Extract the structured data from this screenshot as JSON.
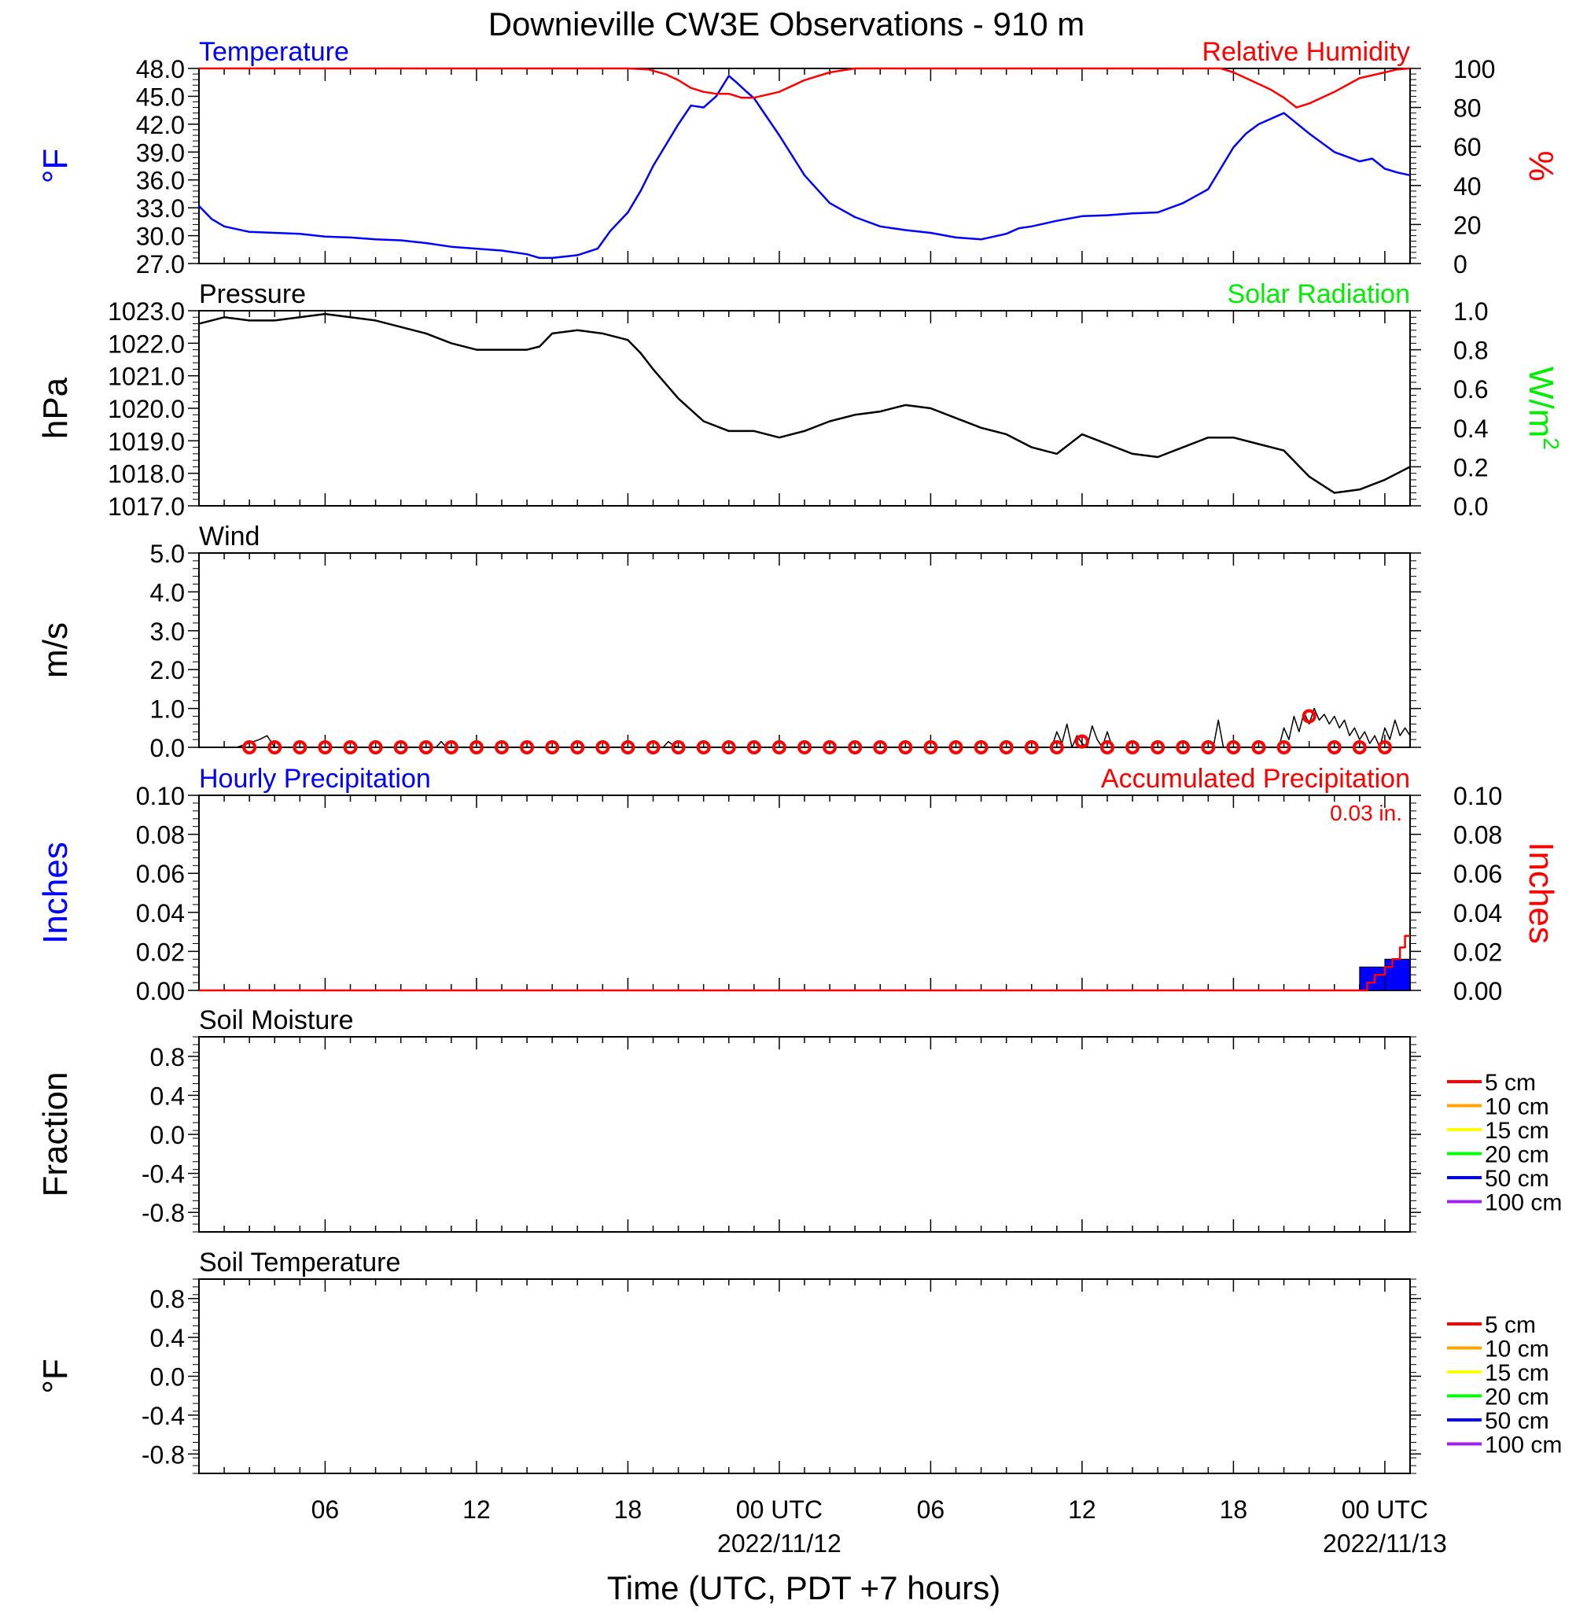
{
  "figure": {
    "title": "Downieville CW3E Observations - 910 m",
    "xlabel": "Time (UTC, PDT +7 hours)",
    "x_ticks": [
      {
        "hour": 6,
        "label": "06",
        "date": ""
      },
      {
        "hour": 12,
        "label": "12",
        "date": ""
      },
      {
        "hour": 18,
        "label": "18",
        "date": ""
      },
      {
        "hour": 24,
        "label": "00 UTC",
        "date": "2022/11/12"
      },
      {
        "hour": 30,
        "label": "06",
        "date": ""
      },
      {
        "hour": 36,
        "label": "12",
        "date": ""
      },
      {
        "hour": 42,
        "label": "18",
        "date": ""
      },
      {
        "hour": 48,
        "label": "00 UTC",
        "date": "2022/11/13"
      }
    ],
    "colors": {
      "temperature": "#0000ff",
      "humidity": "#ff0000",
      "pressure": "#000000",
      "solar": "#00ee00",
      "wind": "#000000",
      "wind_marker": "#ff0000",
      "hourly_precip": "#0000ff",
      "accum_precip": "#ff0000"
    }
  },
  "chart_data": [
    {
      "type": "line",
      "panel": "temperature-humidity",
      "title_left": "Temperature",
      "title_right": "Relative Humidity",
      "ylabel_left": "°F",
      "ylabel_right": "%",
      "x_range_hours": [
        1,
        49
      ],
      "ylim_left": [
        27,
        48
      ],
      "yticks_left": [
        "48.0",
        "45.0",
        "42.0",
        "39.0",
        "36.0",
        "33.0",
        "30.0",
        "27.0"
      ],
      "ylim_right": [
        0,
        100
      ],
      "yticks_right": [
        "100",
        "80",
        "60",
        "40",
        "20",
        "0"
      ],
      "series": [
        {
          "name": "Temperature",
          "axis": "left",
          "x": [
            1,
            1.5,
            2,
            3,
            4,
            5,
            6,
            7,
            8,
            9,
            10,
            11,
            12,
            13,
            14,
            14.5,
            15,
            16,
            16.8,
            17.3,
            18,
            18.5,
            19,
            20,
            20.5,
            21,
            21.5,
            22,
            22.3,
            22.7,
            23,
            24,
            25,
            26,
            27,
            28,
            29,
            30,
            31,
            32,
            33,
            33.5,
            34,
            35,
            36,
            37,
            38,
            39,
            40,
            41,
            42,
            42.5,
            43,
            44,
            45,
            46,
            47,
            47.5,
            48,
            48.5,
            49
          ],
          "y": [
            33.2,
            31.8,
            31.0,
            30.4,
            30.3,
            30.2,
            29.9,
            29.8,
            29.6,
            29.5,
            29.2,
            28.8,
            28.6,
            28.4,
            28.0,
            27.6,
            27.6,
            27.9,
            28.6,
            30.5,
            32.5,
            34.8,
            37.5,
            42.0,
            44.0,
            43.8,
            45.0,
            47.2,
            46.5,
            45.5,
            44.8,
            40.8,
            36.5,
            33.5,
            32.0,
            31.0,
            30.6,
            30.3,
            29.8,
            29.6,
            30.2,
            30.8,
            31.0,
            31.6,
            32.1,
            32.2,
            32.4,
            32.5,
            33.5,
            35.0,
            39.5,
            41.0,
            42.0,
            43.2,
            41.0,
            39.0,
            38.0,
            38.3,
            37.2,
            36.8,
            36.5
          ]
        },
        {
          "name": "Relative Humidity",
          "axis": "right",
          "x": [
            1,
            18,
            18.8,
            19.5,
            20,
            20.5,
            21,
            21.5,
            22,
            22.5,
            23,
            24,
            25,
            26,
            27,
            28,
            29,
            30,
            32,
            34,
            36,
            40,
            41.5,
            42,
            42.5,
            43,
            43.5,
            44,
            44.5,
            45,
            46,
            47,
            48,
            48.5,
            49
          ],
          "y": [
            100,
            100,
            99.5,
            97,
            94,
            90,
            88,
            87,
            87,
            85,
            85,
            88,
            94,
            98,
            100,
            100,
            100,
            100,
            100,
            100,
            100,
            100,
            100,
            98,
            95,
            92,
            89,
            85,
            80,
            82,
            88,
            95,
            98,
            99.5,
            100
          ]
        }
      ]
    },
    {
      "type": "line",
      "panel": "pressure-solar",
      "title_left": "Pressure",
      "title_right": "Solar Radiation",
      "ylabel_left": "hPa",
      "ylabel_right": "W/m",
      "ylabel_right_sup": "2",
      "x_range_hours": [
        1,
        49
      ],
      "ylim_left": [
        1017,
        1023
      ],
      "yticks_left": [
        "1023.0",
        "1022.0",
        "1021.0",
        "1020.0",
        "1019.0",
        "1018.0",
        "1017.0"
      ],
      "ylim_right": [
        0,
        1
      ],
      "yticks_right": [
        "1.0",
        "0.8",
        "0.6",
        "0.4",
        "0.2",
        "0.0"
      ],
      "series": [
        {
          "name": "Pressure",
          "axis": "left",
          "x": [
            1,
            2,
            3,
            4,
            5,
            6,
            7,
            8,
            9,
            10,
            11,
            12,
            13,
            14,
            14.5,
            15,
            16,
            17,
            18,
            18.5,
            19,
            20,
            21,
            22,
            23,
            24,
            25,
            26,
            27,
            28,
            29,
            30,
            31,
            32,
            33,
            34,
            35,
            35.5,
            36,
            37,
            38,
            39,
            40,
            41,
            42,
            43,
            44,
            44.5,
            45,
            46,
            47,
            48,
            49
          ],
          "y": [
            1022.6,
            1022.8,
            1022.7,
            1022.7,
            1022.8,
            1022.9,
            1022.8,
            1022.7,
            1022.5,
            1022.3,
            1022.0,
            1021.8,
            1021.8,
            1021.8,
            1021.9,
            1022.3,
            1022.4,
            1022.3,
            1022.1,
            1021.7,
            1021.2,
            1020.3,
            1019.6,
            1019.3,
            1019.3,
            1019.1,
            1019.3,
            1019.6,
            1019.8,
            1019.9,
            1020.1,
            1020.0,
            1019.7,
            1019.4,
            1019.2,
            1018.8,
            1018.6,
            1018.9,
            1019.2,
            1018.9,
            1018.6,
            1018.5,
            1018.8,
            1019.1,
            1019.1,
            1018.9,
            1018.7,
            1018.3,
            1017.9,
            1017.4,
            1017.5,
            1017.8,
            1018.2
          ]
        },
        {
          "name": "Solar Radiation",
          "axis": "right",
          "x": [],
          "y": []
        }
      ]
    },
    {
      "type": "line",
      "panel": "wind",
      "title_left": "Wind",
      "ylabel_left": "m/s",
      "x_range_hours": [
        1,
        49
      ],
      "ylim_left": [
        0,
        5
      ],
      "yticks_left": [
        "5.0",
        "4.0",
        "3.0",
        "2.0",
        "1.0",
        "0.0"
      ],
      "series": [
        {
          "name": "Wind Speed",
          "axis": "left",
          "x": [
            1,
            2.5,
            3.4,
            3.7,
            4,
            10.4,
            10.6,
            10.8,
            11,
            19.4,
            19.6,
            19.8,
            20,
            34.8,
            35,
            35.2,
            35.4,
            35.6,
            35.8,
            36,
            36.2,
            36.4,
            36.6,
            36.8,
            37,
            37.2,
            40,
            41.2,
            41.4,
            41.6,
            43.8,
            44,
            44.2,
            44.4,
            44.6,
            44.8,
            45,
            45.2,
            45.4,
            45.6,
            45.8,
            46,
            46.2,
            46.4,
            46.6,
            46.8,
            47,
            47.2,
            47.4,
            47.6,
            47.8,
            48,
            48.2,
            48.4,
            48.6,
            48.8,
            49
          ],
          "y": [
            0,
            0,
            0.2,
            0.3,
            0,
            0,
            0.15,
            0,
            0,
            0,
            0.15,
            0.05,
            0,
            0,
            0.4,
            0.1,
            0.6,
            0,
            0.3,
            0.1,
            0,
            0.55,
            0.2,
            0,
            0.4,
            0,
            0,
            0,
            0.7,
            0,
            0,
            0.5,
            0.2,
            0.8,
            0.4,
            0.9,
            0.6,
            1.0,
            0.7,
            0.85,
            0.6,
            0.8,
            0.5,
            0.7,
            0.3,
            0.5,
            0.2,
            0.4,
            0.1,
            0.3,
            0,
            0.5,
            0.2,
            0.7,
            0.3,
            0.5,
            0.3
          ]
        },
        {
          "name": "Hourly Wind Markers",
          "axis": "left",
          "x": [
            3,
            4,
            5,
            6,
            7,
            8,
            9,
            10,
            11,
            12,
            13,
            14,
            15,
            16,
            17,
            18,
            19,
            20,
            21,
            22,
            23,
            24,
            25,
            26,
            27,
            28,
            29,
            30,
            31,
            32,
            33,
            34,
            35,
            36,
            37,
            38,
            39,
            40,
            41,
            42,
            43,
            44,
            45,
            46,
            47,
            48
          ],
          "y": [
            0,
            0,
            0,
            0,
            0,
            0,
            0,
            0,
            0,
            0,
            0,
            0,
            0,
            0,
            0,
            0,
            0,
            0,
            0,
            0,
            0,
            0,
            0,
            0,
            0,
            0,
            0,
            0,
            0,
            0,
            0,
            0,
            0,
            0.15,
            0,
            0,
            0,
            0,
            0,
            0,
            0,
            0,
            0.8,
            0,
            0,
            0
          ]
        }
      ]
    },
    {
      "type": "bar",
      "panel": "precipitation",
      "title_left": "Hourly Precipitation",
      "title_right": "Accumulated Precipitation",
      "total_label": "0.03 in.",
      "ylabel_left": "Inches",
      "ylabel_right": "Inches",
      "x_range_hours": [
        1,
        49
      ],
      "ylim_left": [
        0,
        0.1
      ],
      "yticks_left": [
        "0.10",
        "0.08",
        "0.06",
        "0.04",
        "0.02",
        "0.00"
      ],
      "ylim_right": [
        0,
        0.1
      ],
      "yticks_right": [
        "0.10",
        "0.08",
        "0.06",
        "0.04",
        "0.02",
        "0.00"
      ],
      "series": [
        {
          "name": "Hourly Precipitation",
          "axis": "left",
          "x_start": [
            47,
            48
          ],
          "x_end": [
            48,
            49
          ],
          "y": [
            0.012,
            0.016
          ]
        },
        {
          "name": "Accumulated Precipitation",
          "axis": "right",
          "x": [
            1,
            47,
            47.3,
            47.3,
            47.6,
            47.6,
            48,
            48,
            48.3,
            48.3,
            48.6,
            48.6,
            48.8,
            48.8,
            49
          ],
          "y": [
            0,
            0,
            0,
            0.004,
            0.004,
            0.008,
            0.008,
            0.012,
            0.012,
            0.016,
            0.016,
            0.022,
            0.022,
            0.028,
            0.028
          ]
        }
      ]
    },
    {
      "type": "line",
      "panel": "soil-moisture",
      "title_left": "Soil Moisture",
      "ylabel_left": "Fraction",
      "x_range_hours": [
        1,
        49
      ],
      "ylim_left": [
        -1,
        1
      ],
      "yticks_left": [
        {
          "v": 0.8,
          "label": "0.8"
        },
        {
          "v": 0.4,
          "label": "0.4"
        },
        {
          "v": 0.0,
          "label": "0.0"
        },
        {
          "v": -0.4,
          "label": "-0.4"
        },
        {
          "v": -0.8,
          "label": "-0.8"
        }
      ],
      "legend": [
        {
          "label": "5 cm",
          "color": "#ff0000"
        },
        {
          "label": "10 cm",
          "color": "#ffa500"
        },
        {
          "label": "15 cm",
          "color": "#ffff00"
        },
        {
          "label": "20 cm",
          "color": "#00ff00"
        },
        {
          "label": "50 cm",
          "color": "#0000ff"
        },
        {
          "label": "100 cm",
          "color": "#a020f0"
        }
      ],
      "series": []
    },
    {
      "type": "line",
      "panel": "soil-temperature",
      "title_left": "Soil Temperature",
      "ylabel_left": "°F",
      "x_range_hours": [
        1,
        49
      ],
      "ylim_left": [
        -1,
        1
      ],
      "yticks_left": [
        {
          "v": 0.8,
          "label": "0.8"
        },
        {
          "v": 0.4,
          "label": "0.4"
        },
        {
          "v": 0.0,
          "label": "0.0"
        },
        {
          "v": -0.4,
          "label": "-0.4"
        },
        {
          "v": -0.8,
          "label": "-0.8"
        }
      ],
      "legend": [
        {
          "label": "5 cm",
          "color": "#ff0000"
        },
        {
          "label": "10 cm",
          "color": "#ffa500"
        },
        {
          "label": "15 cm",
          "color": "#ffff00"
        },
        {
          "label": "20 cm",
          "color": "#00ff00"
        },
        {
          "label": "50 cm",
          "color": "#0000ff"
        },
        {
          "label": "100 cm",
          "color": "#a020f0"
        }
      ],
      "series": []
    }
  ]
}
